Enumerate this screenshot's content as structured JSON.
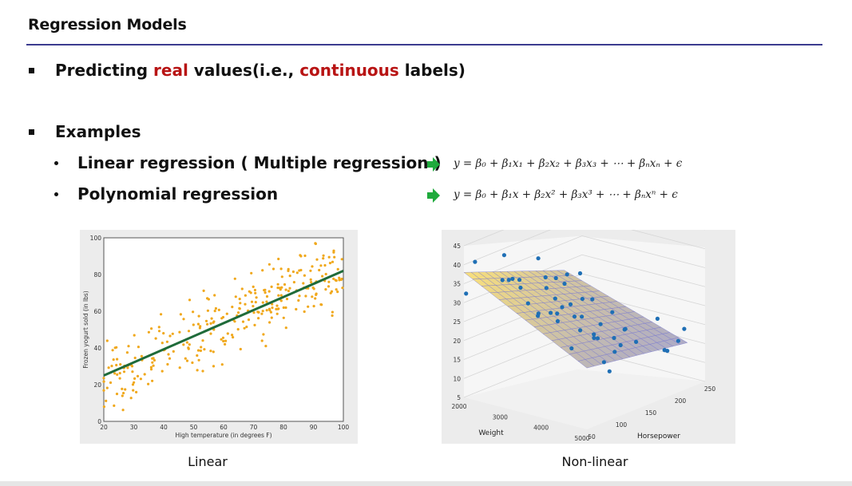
{
  "slide": {
    "title": "Regression Models"
  },
  "bullets": {
    "first": {
      "prefix": "Predicting ",
      "highlight1": "real",
      "middle": " values(i.e., ",
      "highlight2": "continuous",
      "suffix": " labels)"
    },
    "examples_label": "Examples",
    "items": [
      {
        "label": "Linear regression ( Multiple regression )"
      },
      {
        "label": "Polynomial regression"
      }
    ]
  },
  "formulas": {
    "linear": "y = β₀ + β₁x₁ + β₂x₂ + β₃x₃ + ⋯ + βₙxₙ + ϵ",
    "polynomial": "y = β₀ + β₁x + β₂x² + β₃x³ + ⋯ + βₙxⁿ + ϵ"
  },
  "colors": {
    "accent": "#b81414",
    "rule": "#3b3b8f",
    "arrow": "#1faa3c",
    "scatter_point": "#f0a81c",
    "fit_line": "#1f6b3a",
    "blue_point": "#1f6fb5"
  },
  "captions": {
    "left": "Linear",
    "right": "Non-linear"
  },
  "chart_data": [
    {
      "type": "scatter",
      "title": "",
      "xlabel": "High temperature (in degrees F)",
      "ylabel": "Frozen yogurt sold (in lbs)",
      "xlim": [
        20,
        100
      ],
      "ylim": [
        0,
        100
      ],
      "x_ticks": [
        "20",
        "30",
        "40",
        "50",
        "60",
        "70",
        "80",
        "90",
        "100"
      ],
      "y_ticks": [
        "0",
        "20",
        "40",
        "60",
        "80",
        "100"
      ],
      "fit_line": {
        "x": [
          20,
          100
        ],
        "y": [
          25,
          82
        ]
      },
      "grid": false,
      "point_color": "#f0a81c",
      "approx_points": 300
    },
    {
      "type": "scatter",
      "title": "",
      "xlabel": "Weight",
      "ylabel": "Horsepower",
      "zlim": [
        5,
        45
      ],
      "x_ticks": [
        "2000",
        "3000",
        "4000",
        "5000"
      ],
      "y_ticks": [
        "50",
        "100",
        "150",
        "200",
        "250"
      ],
      "z_ticks": [
        "5",
        "10",
        "15",
        "20",
        "25",
        "30",
        "35",
        "40",
        "45"
      ],
      "surface": "fitted regression surface",
      "grid": true
    }
  ]
}
